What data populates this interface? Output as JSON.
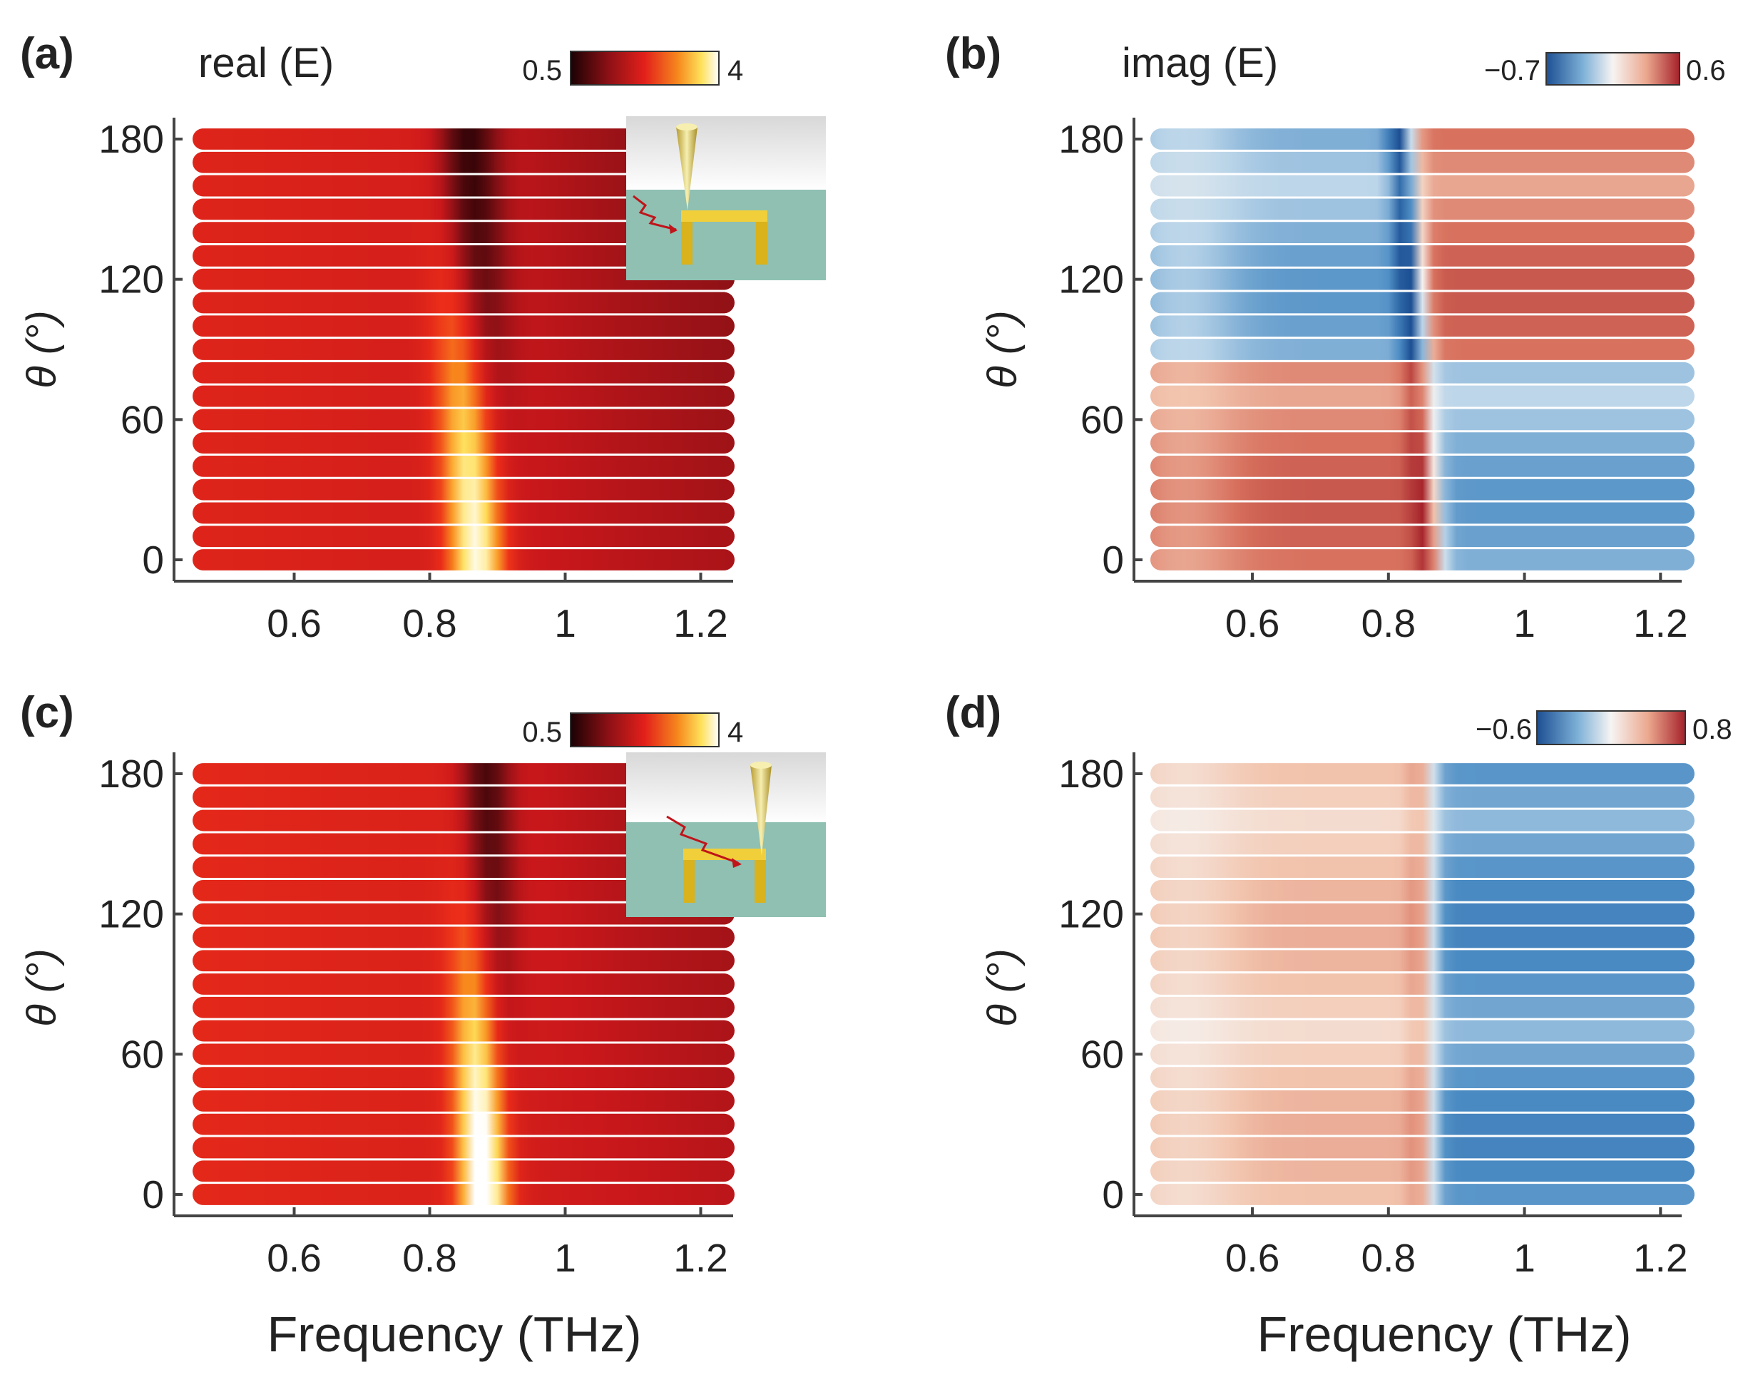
{
  "figure": {
    "xlabel": "Frequency (THz)"
  },
  "chart_data": [
    {
      "panel": "(a)",
      "type": "heatmap",
      "title": "real (E)",
      "colormap": "hot",
      "colorbar": {
        "min": 0.5,
        "max": 4,
        "min_label": "0.5",
        "max_label": "4"
      },
      "x": {
        "label": "Frequency (THz)",
        "range": [
          0.45,
          1.25
        ],
        "ticks": [
          0.6,
          0.8,
          1,
          1.2
        ],
        "tick_labels": [
          "0.6",
          "0.8",
          "1",
          "1.2"
        ]
      },
      "y": {
        "label": "θ (°)",
        "range": [
          0,
          180
        ],
        "ticks": [
          0,
          60,
          120,
          180
        ],
        "tick_labels": [
          "0",
          "60",
          "120",
          "180"
        ],
        "row_step": 10
      },
      "inset": {
        "icon": "h-resonator-tip-left-icon",
        "tip_side": "left"
      },
      "model": {
        "base": 1.9,
        "f_low": 0.82,
        "f_high": 0.87,
        "peak_amp": 2.1,
        "dip_amp": -1.3,
        "width": 0.04,
        "tail_slope": 0.5
      }
    },
    {
      "panel": "(b)",
      "type": "heatmap",
      "title": "imag (E)",
      "colormap": "diverging-blue-red",
      "colorbar": {
        "min": -0.7,
        "max": 0.6,
        "min_label": "−0.7",
        "max_label": "0.6"
      },
      "x": {
        "label": "Frequency (THz)",
        "range": [
          0.45,
          1.25
        ],
        "ticks": [
          0.6,
          0.8,
          1,
          1.2
        ],
        "tick_labels": [
          "0.6",
          "0.8",
          "1",
          "1.2"
        ]
      },
      "y": {
        "label": "θ (°)",
        "range": [
          0,
          180
        ],
        "ticks": [
          0,
          60,
          120,
          180
        ],
        "tick_labels": [
          "0",
          "60",
          "120",
          "180"
        ],
        "row_step": 10
      },
      "model": {
        "f_low": 0.83,
        "f_high": 0.87,
        "amp": 0.45,
        "sign_flip_theta": 85,
        "resonance_boost": 0.35
      }
    },
    {
      "panel": "(c)",
      "type": "heatmap",
      "colormap": "hot",
      "colorbar": {
        "min": 0.5,
        "max": 4,
        "min_label": "0.5",
        "max_label": "4"
      },
      "x": {
        "label": "Frequency (THz)",
        "range": [
          0.45,
          1.25
        ],
        "ticks": [
          0.6,
          0.8,
          1,
          1.2
        ],
        "tick_labels": [
          "0.6",
          "0.8",
          "1",
          "1.2"
        ]
      },
      "y": {
        "label": "θ (°)",
        "range": [
          0,
          180
        ],
        "ticks": [
          0,
          60,
          120,
          180
        ],
        "tick_labels": [
          "0",
          "60",
          "120",
          "180"
        ],
        "row_step": 10
      },
      "inset": {
        "icon": "h-resonator-tip-right-icon",
        "tip_side": "right"
      },
      "model": {
        "base": 2.0,
        "f_low": 0.85,
        "f_high": 0.88,
        "peak_amp": 2.4,
        "dip_amp": -1.2,
        "width": 0.035,
        "tail_slope": 0.45
      }
    },
    {
      "panel": "(d)",
      "type": "heatmap",
      "colormap": "diverging-blue-red",
      "colorbar": {
        "min": -0.6,
        "max": 0.8,
        "min_label": "−0.6",
        "max_label": "0.8"
      },
      "x": {
        "label": "Frequency (THz)",
        "range": [
          0.45,
          1.25
        ],
        "ticks": [
          0.6,
          0.8,
          1,
          1.2
        ],
        "tick_labels": [
          "0.6",
          "0.8",
          "1",
          "1.2"
        ]
      },
      "y": {
        "label": "θ (°)",
        "range": [
          0,
          180
        ],
        "ticks": [
          0,
          60,
          120,
          180
        ],
        "tick_labels": [
          "0",
          "60",
          "120",
          "180"
        ],
        "row_step": 10
      },
      "model": {
        "f_low": 0.86,
        "f_high": 0.86,
        "amp": 0.4,
        "sign_flip_theta": 999,
        "resonance_boost": 0.25
      }
    }
  ],
  "colors": {
    "hot": [
      "#3a0508",
      "#7a0f14",
      "#c8171b",
      "#ec2d19",
      "#f88a1c",
      "#ffe05a",
      "#ffffff"
    ],
    "diverging": [
      "#1c4f93",
      "#4b8cc4",
      "#b7d3e8",
      "#f6f4f2",
      "#f2c4ad",
      "#d7705d",
      "#a5222a"
    ],
    "inset_bg": "#8fc0b2",
    "inset_metal": "#d9b21c"
  }
}
